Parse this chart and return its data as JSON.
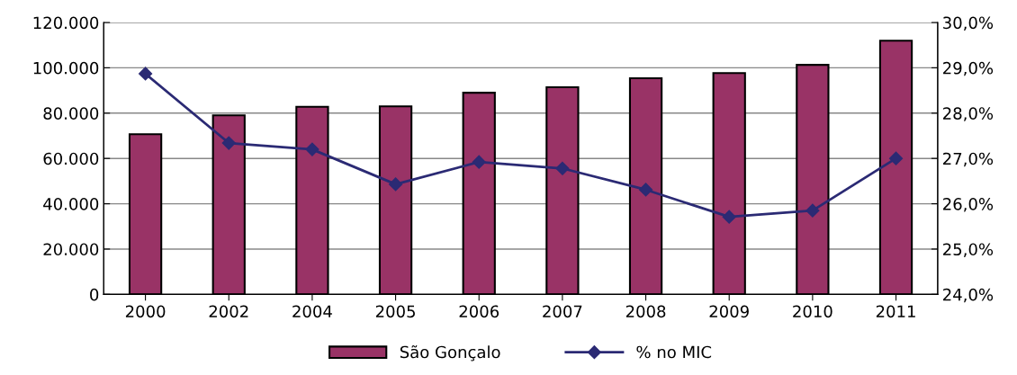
{
  "chart_data": {
    "type": "bar",
    "categories": [
      "2000",
      "2002",
      "2004",
      "2005",
      "2006",
      "2007",
      "2008",
      "2009",
      "2010",
      "2011"
    ],
    "series": [
      {
        "name": "São Gonçalo",
        "color": "#993366",
        "values": [
          70700,
          79000,
          82800,
          83000,
          89000,
          91400,
          95400,
          97700,
          101300,
          112000
        ]
      },
      {
        "name": "% no MIC",
        "type": "line",
        "axis": "y2",
        "color": "#2b2a74",
        "marker": "diamond",
        "values": [
          28.87,
          27.34,
          27.2,
          26.43,
          26.92,
          26.78,
          26.31,
          25.71,
          25.85,
          27.0
        ]
      }
    ],
    "ylim": [
      0,
      120000
    ],
    "yticks": [
      {
        "value": 0,
        "label": "0"
      },
      {
        "value": 20000,
        "label": "20.000"
      },
      {
        "value": 40000,
        "label": "40.000"
      },
      {
        "value": 60000,
        "label": "60.000"
      },
      {
        "value": 80000,
        "label": "80.000"
      },
      {
        "value": 100000,
        "label": "100.000"
      },
      {
        "value": 120000,
        "label": "120.000"
      }
    ],
    "y2lim": [
      24,
      30
    ],
    "y2ticks": [
      {
        "value": 24,
        "label": "24,0%"
      },
      {
        "value": 25,
        "label": "25,0%"
      },
      {
        "value": 26,
        "label": "26,0%"
      },
      {
        "value": 27,
        "label": "27,0%"
      },
      {
        "value": 28,
        "label": "28,0%"
      },
      {
        "value": 29,
        "label": "29,0%"
      },
      {
        "value": 30,
        "label": "30,0%"
      }
    ],
    "grid": "y",
    "legend": "bottom"
  }
}
